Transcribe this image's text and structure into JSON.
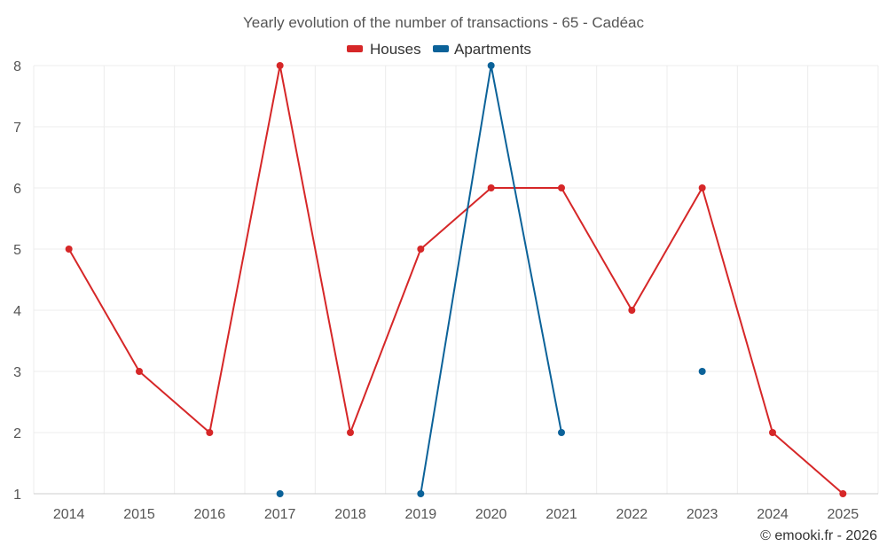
{
  "chart_data": {
    "type": "line",
    "title": "Yearly evolution of the number of transactions - 65 - Cadéac",
    "categories": [
      "2014",
      "2015",
      "2016",
      "2017",
      "2018",
      "2019",
      "2020",
      "2021",
      "2022",
      "2023",
      "2024",
      "2025"
    ],
    "ylim": [
      1,
      8
    ],
    "yticks": [
      1,
      2,
      3,
      4,
      5,
      6,
      7,
      8
    ],
    "grid": true,
    "legend_position": "top-center",
    "series": [
      {
        "name": "Houses",
        "color": "#d62728",
        "values": [
          5,
          3,
          2,
          8,
          2,
          5,
          6,
          6,
          4,
          6,
          2,
          1
        ]
      },
      {
        "name": "Apartments",
        "color": "#0b6299",
        "values": [
          null,
          null,
          null,
          1,
          null,
          1,
          8,
          2,
          null,
          3,
          null,
          null
        ]
      }
    ],
    "credit": "© emooki.fr - 2026"
  }
}
